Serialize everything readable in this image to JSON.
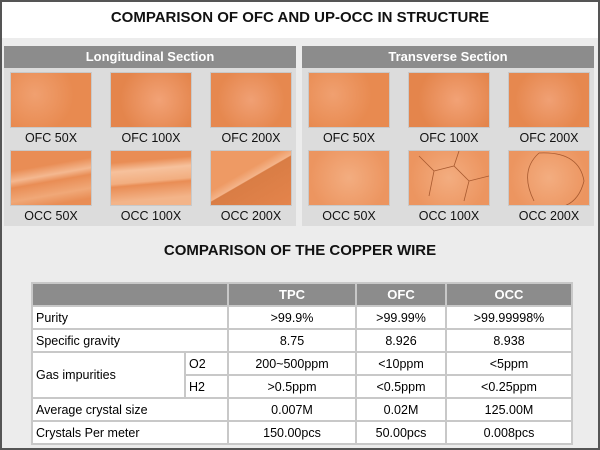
{
  "title": "COMPARISON OF OFC AND UP-OCC IN STRUCTURE",
  "sections": [
    {
      "heading": "Longitudinal Section",
      "images": [
        {
          "caption": "OFC 50X"
        },
        {
          "caption": "OFC 100X"
        },
        {
          "caption": "OFC 200X"
        },
        {
          "caption": "OCC 50X"
        },
        {
          "caption": "OCC 100X"
        },
        {
          "caption": "OCC 200X"
        }
      ]
    },
    {
      "heading": "Transverse Section",
      "images": [
        {
          "caption": "OFC 50X"
        },
        {
          "caption": "OFC 100X"
        },
        {
          "caption": "OFC 200X"
        },
        {
          "caption": "OCC 50X"
        },
        {
          "caption": "OCC 100X"
        },
        {
          "caption": "OCC 200X"
        }
      ]
    }
  ],
  "table": {
    "title": "COMPARISON OF THE COPPER WIRE",
    "header": [
      "TPC",
      "OFC",
      "OCC"
    ],
    "rows": [
      {
        "label": "Purity",
        "values": [
          ">99.9%",
          ">99.99%",
          ">99.99998%"
        ]
      },
      {
        "label": "Specific gravity",
        "values": [
          "8.75",
          "8.926",
          "8.938"
        ]
      },
      {
        "label": "Gas impurities",
        "subrows": [
          {
            "label": "O2",
            "values": [
              "200~500ppm",
              "<10ppm",
              "<5ppm"
            ]
          },
          {
            "label": "H2",
            "values": [
              ">0.5ppm",
              "<0.5ppm",
              "<0.25ppm"
            ]
          }
        ]
      },
      {
        "label": "Average crystal size",
        "values": [
          "0.007M",
          "0.02M",
          "125.00M"
        ]
      },
      {
        "label": "Crystals Per meter",
        "values": [
          "150.00pcs",
          "50.00pcs",
          "0.008pcs"
        ]
      }
    ]
  }
}
